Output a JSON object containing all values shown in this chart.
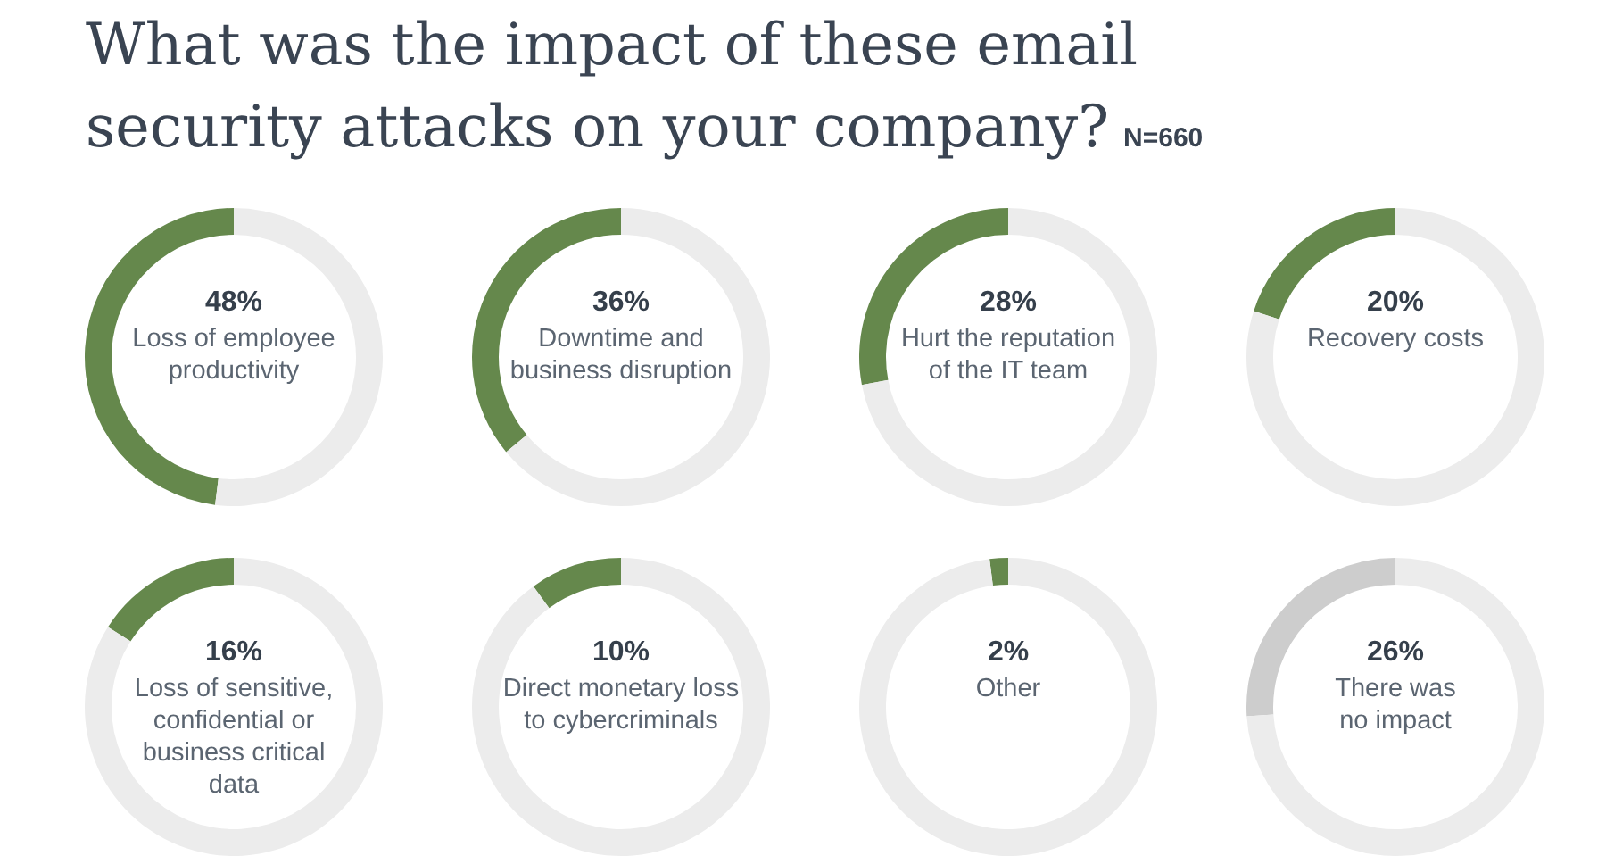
{
  "chart_data": [
    {
      "type": "donut",
      "title": "What was the impact of these email security attacks on your company?",
      "categories": [
        "Loss of employee productivity",
        null
      ],
      "values": [
        48,
        52
      ],
      "colors": [
        "#65884c",
        "#ececec"
      ],
      "value_labels": [
        "48%",
        null
      ]
    },
    {
      "type": "donut",
      "categories": [
        "Downtime and business disruption",
        null
      ],
      "values": [
        36,
        64
      ],
      "colors": [
        "#65884c",
        "#ececec"
      ],
      "value_labels": [
        "36%",
        null
      ]
    },
    {
      "type": "donut",
      "subtitle": "N=660",
      "categories": [
        "Hurt the reputation of the IT team",
        null
      ],
      "values": [
        28,
        72
      ],
      "colors": [
        "#65884c",
        "#ececec"
      ],
      "value_labels": [
        "28%",
        null
      ]
    },
    {
      "type": "donut",
      "categories": [
        "Recovery costs",
        null
      ],
      "values": [
        20,
        80
      ],
      "colors": [
        "#65884c",
        "#ececec"
      ],
      "value_labels": [
        "20%",
        null
      ]
    },
    {
      "type": "donut",
      "categories": [
        "Loss of sensitive, confidential or business critical data",
        null
      ],
      "values": [
        16,
        84
      ],
      "colors": [
        "#65884c",
        "#ececec"
      ],
      "value_labels": [
        "16%",
        null
      ]
    },
    {
      "type": "donut",
      "categories": [
        "Direct monetary loss to cybercriminals",
        null
      ],
      "values": [
        10,
        90
      ],
      "colors": [
        "#65884c",
        "#ececec"
      ],
      "value_labels": [
        "10%",
        null
      ]
    },
    {
      "type": "donut",
      "categories": [
        "Other",
        null
      ],
      "values": [
        2,
        98
      ],
      "colors": [
        "#65884c",
        "#ececec"
      ],
      "value_labels": [
        "2%",
        null
      ]
    },
    {
      "type": "donut",
      "categories": [
        "There was no impact",
        null
      ],
      "values": [
        26,
        74
      ],
      "colors": [
        "#cdcdcd",
        "#ececec"
      ],
      "value_labels": [
        "26%",
        null
      ]
    }
  ]
}
